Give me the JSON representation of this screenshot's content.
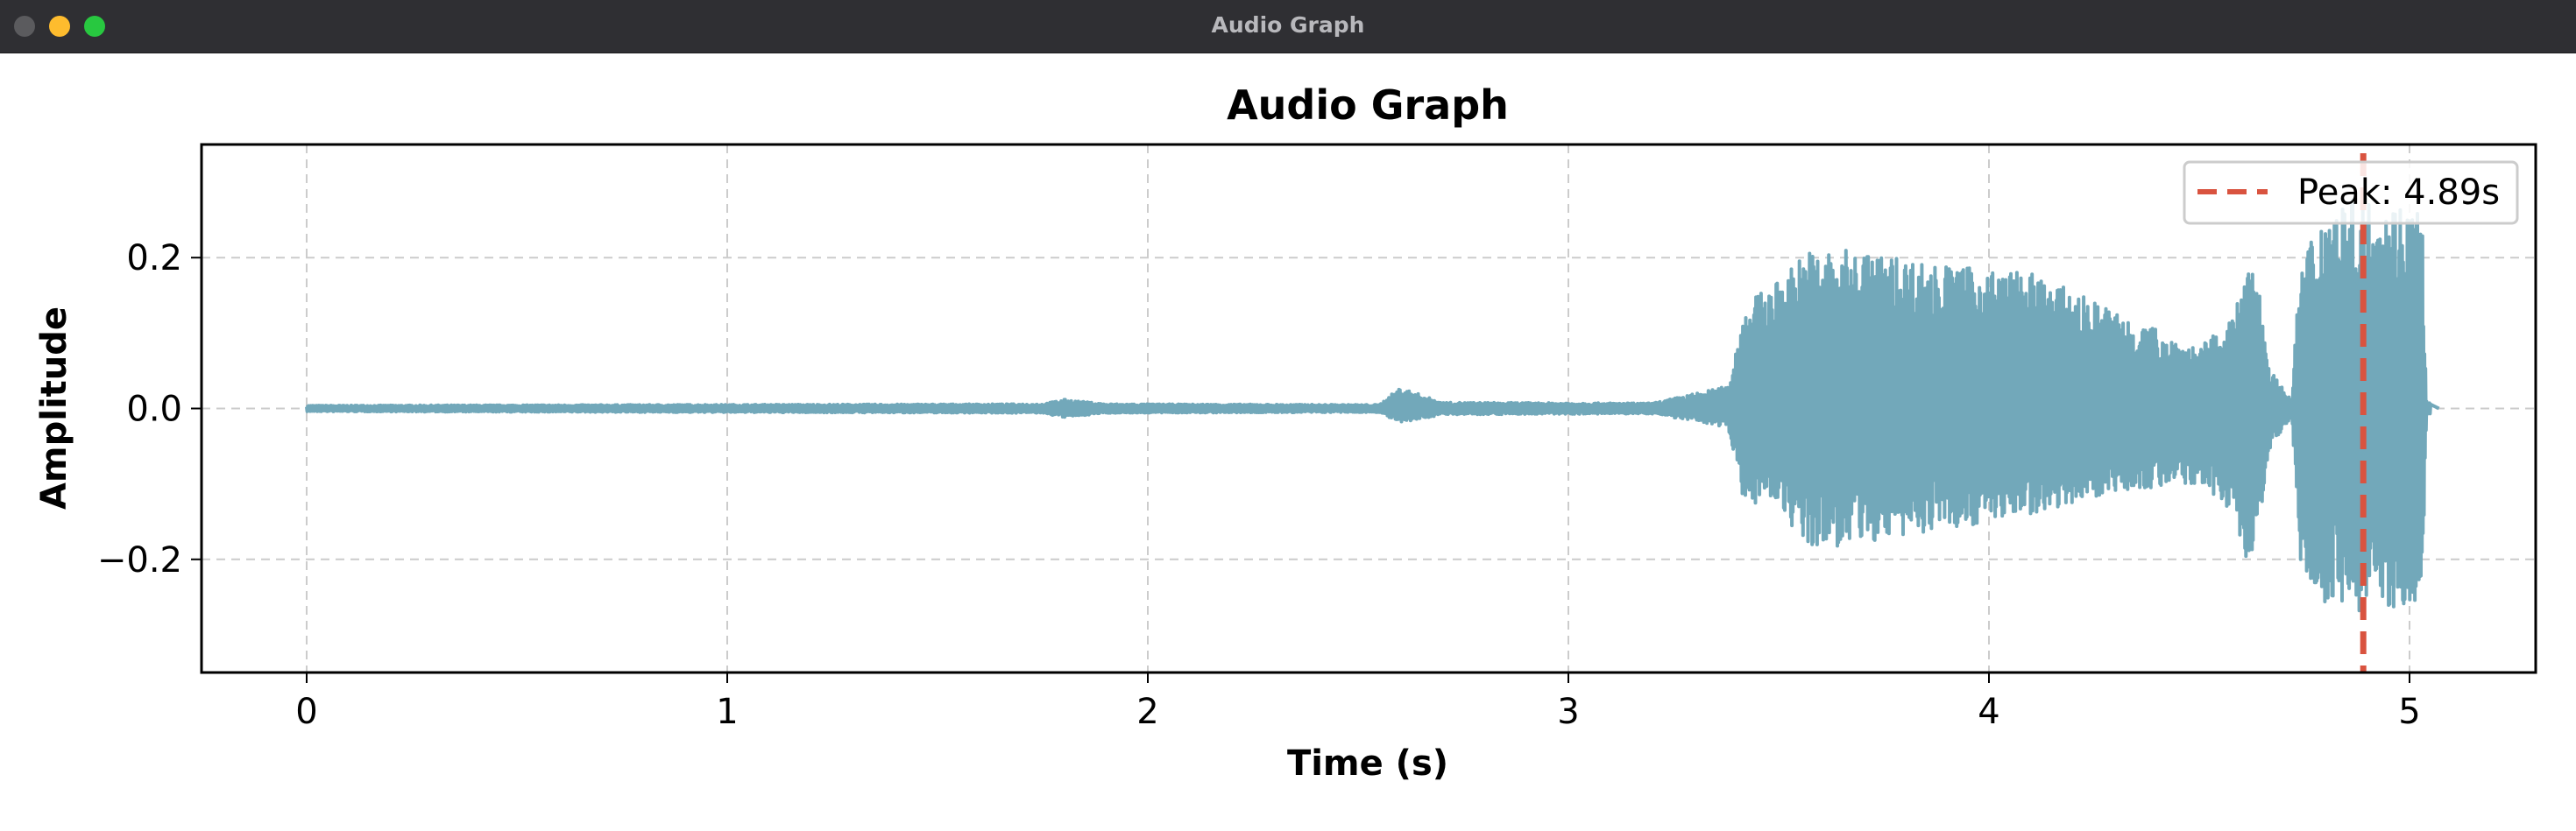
{
  "window": {
    "title": "Audio Graph"
  },
  "chart_data": {
    "type": "line",
    "title": "Audio Graph",
    "xlabel": "Time (s)",
    "ylabel": "Amplitude",
    "xlim": [
      -0.25,
      5.3
    ],
    "ylim": [
      -0.35,
      0.35
    ],
    "xticks": [
      0,
      1,
      2,
      3,
      4,
      5
    ],
    "xtick_labels": [
      "0",
      "1",
      "2",
      "3",
      "4",
      "5"
    ],
    "yticks": [
      -0.2,
      0.0,
      0.2
    ],
    "ytick_labels": [
      "−0.2",
      "0.0",
      "0.2"
    ],
    "grid": true,
    "grid_style": "dashed",
    "legend_position": "top-right",
    "series": [
      {
        "color": "#72a8ba",
        "duration_s": 5.05,
        "envelope": [
          {
            "t": 0.0,
            "pos": 0.004,
            "neg": -0.004
          },
          {
            "t": 1.75,
            "pos": 0.006,
            "neg": -0.006
          },
          {
            "t": 1.8,
            "pos": 0.012,
            "neg": -0.012
          },
          {
            "t": 1.9,
            "pos": 0.006,
            "neg": -0.006
          },
          {
            "t": 2.55,
            "pos": 0.005,
            "neg": -0.005
          },
          {
            "t": 2.6,
            "pos": 0.028,
            "neg": -0.02
          },
          {
            "t": 2.7,
            "pos": 0.008,
            "neg": -0.008
          },
          {
            "t": 3.2,
            "pos": 0.007,
            "neg": -0.007
          },
          {
            "t": 3.38,
            "pos": 0.03,
            "neg": -0.025
          },
          {
            "t": 3.42,
            "pos": 0.14,
            "neg": -0.13
          },
          {
            "t": 3.5,
            "pos": 0.17,
            "neg": -0.12
          },
          {
            "t": 3.56,
            "pos": 0.21,
            "neg": -0.19
          },
          {
            "t": 3.7,
            "pos": 0.21,
            "neg": -0.18
          },
          {
            "t": 3.9,
            "pos": 0.19,
            "neg": -0.16
          },
          {
            "t": 4.1,
            "pos": 0.18,
            "neg": -0.14
          },
          {
            "t": 4.3,
            "pos": 0.13,
            "neg": -0.11
          },
          {
            "t": 4.5,
            "pos": 0.08,
            "neg": -0.1
          },
          {
            "t": 4.58,
            "pos": 0.12,
            "neg": -0.14
          },
          {
            "t": 4.63,
            "pos": 0.21,
            "neg": -0.23
          },
          {
            "t": 4.67,
            "pos": 0.05,
            "neg": -0.05
          },
          {
            "t": 4.72,
            "pos": 0.01,
            "neg": -0.01
          },
          {
            "t": 4.74,
            "pos": 0.2,
            "neg": -0.2
          },
          {
            "t": 4.8,
            "pos": 0.27,
            "neg": -0.26
          },
          {
            "t": 4.9,
            "pos": 0.28,
            "neg": -0.27
          },
          {
            "t": 5.03,
            "pos": 0.27,
            "neg": -0.26
          },
          {
            "t": 5.04,
            "pos": 0.01,
            "neg": -0.01
          },
          {
            "t": 5.07,
            "pos": 0.0,
            "neg": 0.0
          }
        ]
      },
      {
        "name": "Peak: 4.89s",
        "type": "vline",
        "x": 4.89,
        "color": "#d9533f",
        "style": "dashed"
      }
    ]
  }
}
